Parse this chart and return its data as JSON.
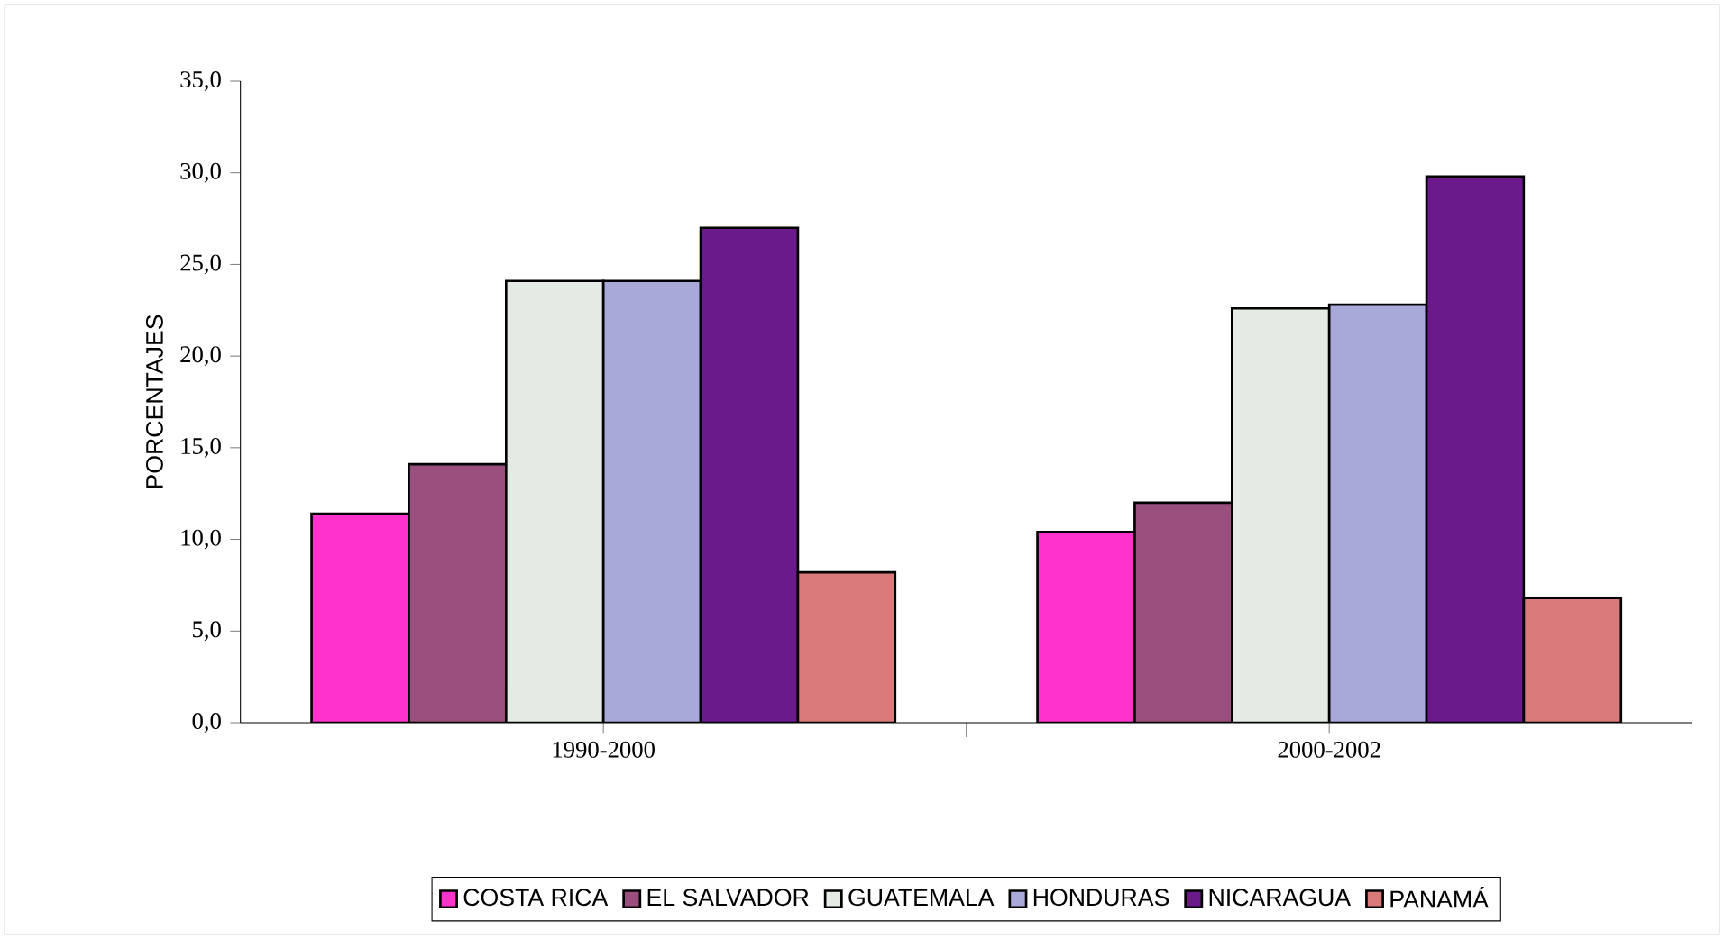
{
  "chart_data": {
    "type": "bar",
    "ylabel": "PORCENTAJES",
    "categories": [
      "1990-2000",
      "2000-2002"
    ],
    "series": [
      {
        "name": "COSTA RICA",
        "color": "#ff33cc",
        "values": [
          11.4,
          10.4
        ]
      },
      {
        "name": "EL SALVADOR",
        "color": "#9b4f7f",
        "values": [
          14.1,
          12.0
        ]
      },
      {
        "name": "GUATEMALA",
        "color": "#e4ebe4",
        "values": [
          24.1,
          22.6
        ]
      },
      {
        "name": "HONDURAS",
        "color": "#a9a9d9",
        "values": [
          24.1,
          22.8
        ]
      },
      {
        "name": "NICARAGUA",
        "color": "#6a1a8a",
        "values": [
          27.0,
          29.8
        ]
      },
      {
        "name": "PANAMÁ",
        "color": "#d87a7a",
        "values": [
          8.2,
          6.8
        ]
      }
    ],
    "ylim": [
      0,
      35
    ],
    "yticks": [
      {
        "value": 0,
        "label": "0,0"
      },
      {
        "value": 5,
        "label": "5,0"
      },
      {
        "value": 10,
        "label": "10,0"
      },
      {
        "value": 15,
        "label": "15,0"
      },
      {
        "value": 20,
        "label": "20,0"
      },
      {
        "value": 25,
        "label": "25,0"
      },
      {
        "value": 30,
        "label": "30,0"
      },
      {
        "value": 35,
        "label": "35,0"
      }
    ],
    "legend": "bottom",
    "grid": false
  }
}
